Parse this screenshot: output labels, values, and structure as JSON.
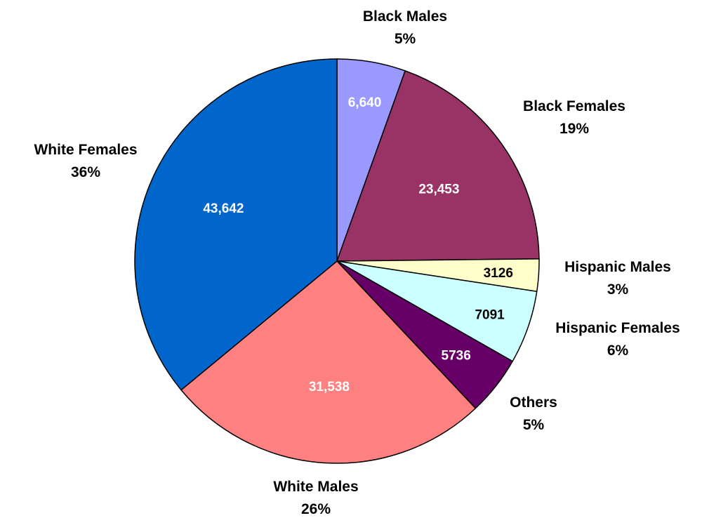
{
  "chart_data": {
    "type": "pie",
    "slices": [
      {
        "name": "Black Males",
        "value": 6640,
        "value_label": "6,640",
        "percent_label": "5%",
        "color": "#9999ff",
        "label_color": "#ffffff"
      },
      {
        "name": "Black Females",
        "value": 23453,
        "value_label": "23,453",
        "percent_label": "19%",
        "color": "#993366",
        "label_color": "#ffffff"
      },
      {
        "name": "Hispanic Males",
        "value": 3126,
        "value_label": "3126",
        "percent_label": "3%",
        "color": "#ffffcc",
        "label_color": "#000000"
      },
      {
        "name": "Hispanic Females",
        "value": 7091,
        "value_label": "7091",
        "percent_label": "6%",
        "color": "#ccffff",
        "label_color": "#000000"
      },
      {
        "name": "Others",
        "value": 5736,
        "value_label": "5736",
        "percent_label": "5%",
        "color": "#660066",
        "label_color": "#ffffff"
      },
      {
        "name": "White Males",
        "value": 31538,
        "value_label": "31,538",
        "percent_label": "26%",
        "color": "#ff8080",
        "label_color": "#ffffff"
      },
      {
        "name": "White Females",
        "value": 43642,
        "value_label": "43,642",
        "percent_label": "36%",
        "color": "#0066cc",
        "label_color": "#ffffff"
      }
    ],
    "start": "12 o'clock",
    "direction": "clockwise",
    "legend": "none"
  }
}
